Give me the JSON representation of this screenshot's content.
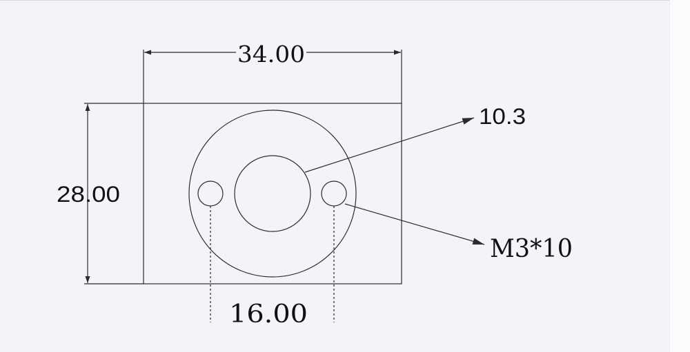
{
  "drawing": {
    "dimensions": {
      "width": "34.00",
      "height": "28.00",
      "hole_spacing": "16.00"
    },
    "callouts": {
      "center_bore": "10.3",
      "mount_holes": "M3*10"
    },
    "colors": {
      "background": "#f3f4fa",
      "lines": "#2b2b2b",
      "text": "#111111"
    }
  }
}
